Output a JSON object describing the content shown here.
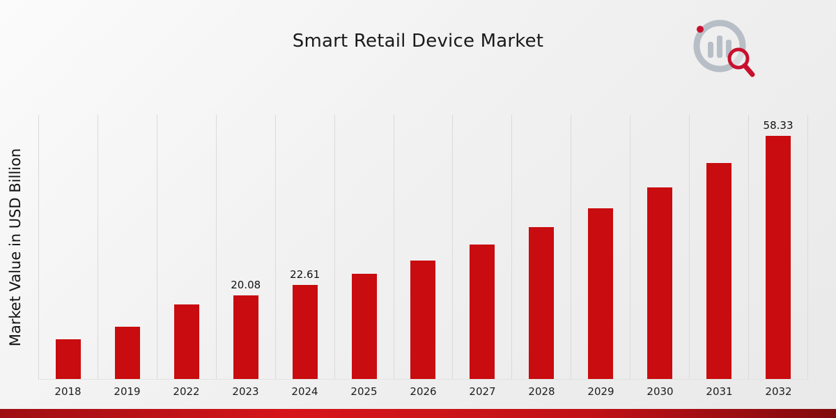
{
  "header": {
    "title": "Smart Retail Device Market"
  },
  "axes": {
    "ylabel": "Market Value in USD Billion"
  },
  "branding": {
    "logo_name": "market-research-logo",
    "accent_red": "#c8102e",
    "logo_gray": "#b8bec6"
  },
  "colors": {
    "bar": "#c90c0f",
    "footer_band": "#c11217",
    "gridline": "#dadada"
  },
  "chart_data": {
    "type": "bar",
    "title": "Smart Retail Device Market",
    "xlabel": "",
    "ylabel": "Market Value in USD Billion",
    "categories": [
      "2018",
      "2019",
      "2022",
      "2023",
      "2024",
      "2025",
      "2026",
      "2027",
      "2028",
      "2029",
      "2030",
      "2031",
      "2032"
    ],
    "values": [
      9.6,
      12.5,
      17.9,
      20.08,
      22.61,
      25.3,
      28.4,
      32.2,
      36.4,
      41.0,
      46.0,
      51.8,
      58.33
    ],
    "data_labels": [
      null,
      null,
      null,
      "20.08",
      "22.61",
      null,
      null,
      null,
      null,
      null,
      null,
      null,
      "58.33"
    ],
    "ylim": [
      0,
      63.5
    ],
    "grid": "vertical",
    "legend": "none",
    "bar_color": "#c90c0f"
  }
}
